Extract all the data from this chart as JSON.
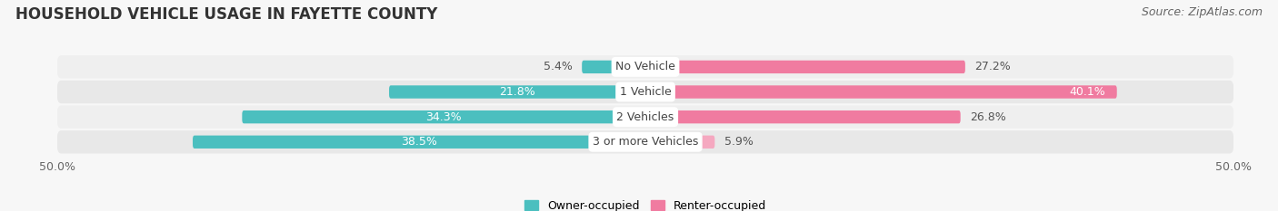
{
  "title": "HOUSEHOLD VEHICLE USAGE IN FAYETTE COUNTY",
  "source": "Source: ZipAtlas.com",
  "categories": [
    "No Vehicle",
    "1 Vehicle",
    "2 Vehicles",
    "3 or more Vehicles"
  ],
  "owner_values": [
    5.4,
    21.8,
    34.3,
    38.5
  ],
  "renter_values": [
    27.2,
    40.1,
    26.8,
    5.9
  ],
  "owner_color": "#4BBFBF",
  "renter_color": "#F07BA0",
  "renter_color_light": "#F5A8C0",
  "background_color": "#f7f7f7",
  "row_color_even": "#efefef",
  "row_color_odd": "#e8e8e8",
  "separator_color": "#d8d8d8",
  "xlim": 50.0,
  "title_fontsize": 12,
  "source_fontsize": 9,
  "label_fontsize": 9,
  "tick_fontsize": 9,
  "legend_fontsize": 9,
  "category_fontsize": 9,
  "bar_height": 0.52
}
